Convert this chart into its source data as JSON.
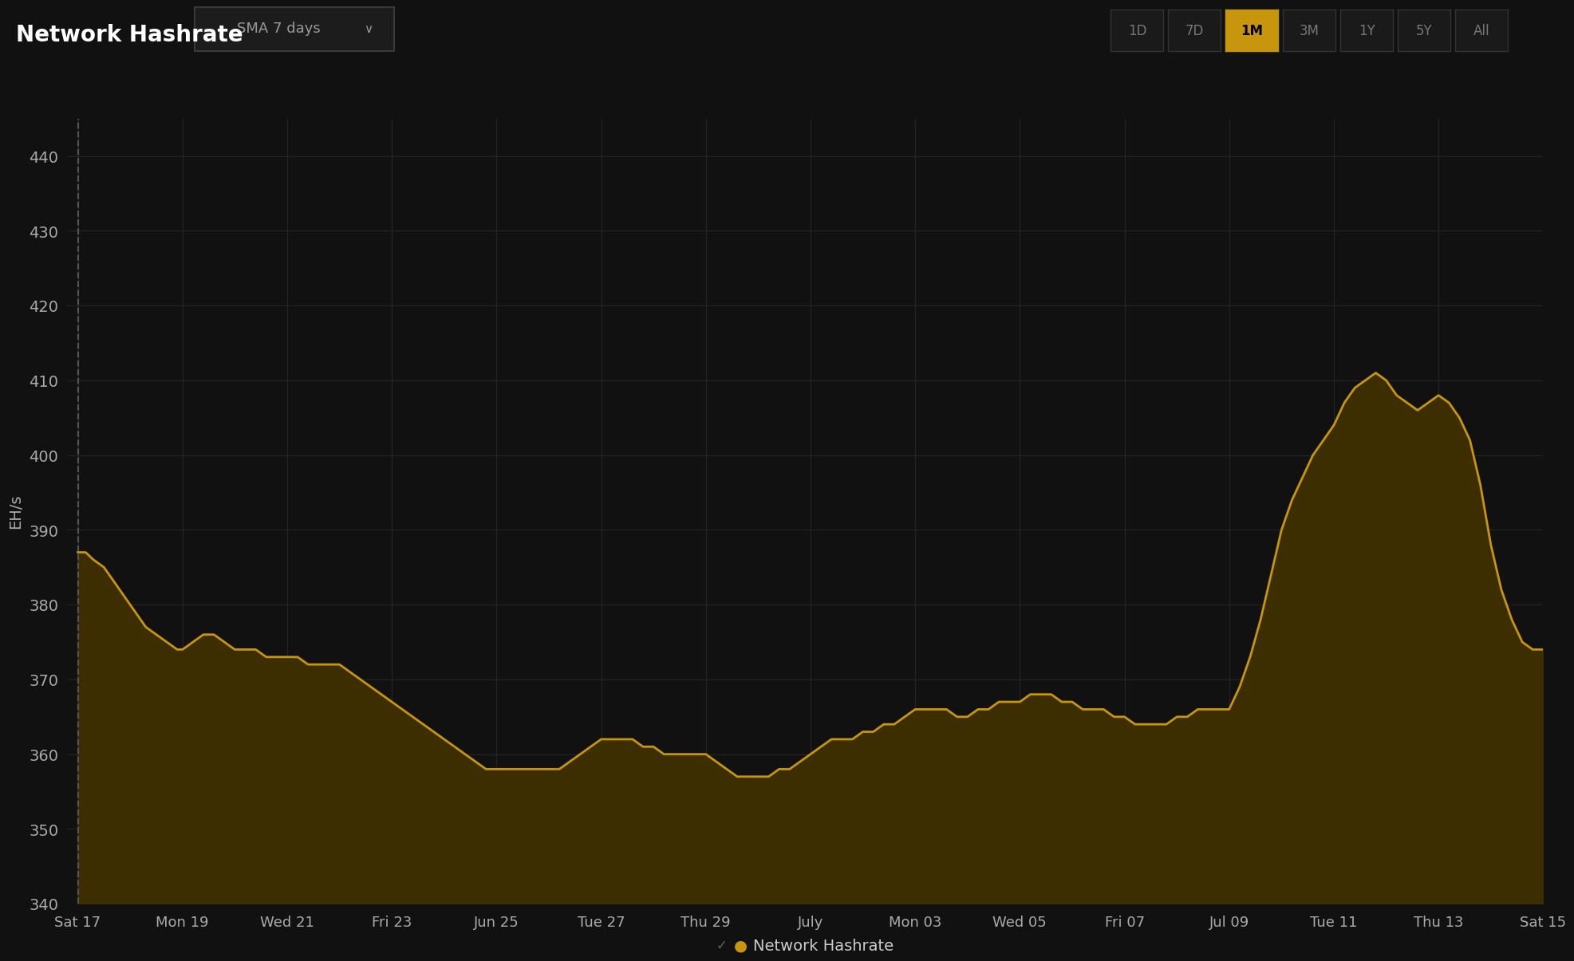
{
  "title": "Network Hashrate",
  "ylabel": "EH/s",
  "background_color": "#111111",
  "line_color": "#c8960c",
  "fill_color": "#3d2e00",
  "grid_color": "#252525",
  "text_color": "#cccccc",
  "ytick_color": "#aaaaaa",
  "ylim": [
    340,
    445
  ],
  "yticks": [
    340,
    350,
    360,
    370,
    380,
    390,
    400,
    410,
    420,
    430,
    440
  ],
  "x_labels": [
    "Sat 17",
    "Mon 19",
    "Wed 21",
    "Fri 23",
    "Jun 25",
    "Tue 27",
    "Thu 29",
    "July",
    "Mon 03",
    "Wed 05",
    "Fri 07",
    "Jul 09",
    "Tue 11",
    "Thu 13",
    "Sat 15"
  ],
  "x_positions": [
    0,
    2,
    4,
    6,
    8,
    10,
    12,
    14,
    16,
    18,
    20,
    22,
    24,
    26,
    28
  ],
  "legend_label": "Network Hashrate",
  "button_labels": [
    "1D",
    "7D",
    "1M",
    "3M",
    "1Y",
    "5Y",
    "All"
  ],
  "active_button": "1M",
  "active_button_color": "#c8960c",
  "active_button_text_color": "#000000",
  "inactive_button_color": "#1a1a1a",
  "inactive_button_text_color": "#777777",
  "dropdown_label": "SMA 7 days",
  "x_data": [
    0.0,
    0.15,
    0.3,
    0.5,
    0.7,
    0.9,
    1.1,
    1.3,
    1.5,
    1.7,
    1.9,
    2.0,
    2.2,
    2.4,
    2.6,
    2.8,
    3.0,
    3.2,
    3.4,
    3.6,
    3.8,
    4.0,
    4.2,
    4.4,
    4.6,
    4.8,
    5.0,
    5.2,
    5.4,
    5.6,
    5.8,
    6.0,
    6.2,
    6.4,
    6.6,
    6.8,
    7.0,
    7.2,
    7.4,
    7.6,
    7.8,
    8.0,
    8.2,
    8.4,
    8.6,
    8.8,
    9.0,
    9.2,
    9.4,
    9.6,
    9.8,
    10.0,
    10.2,
    10.4,
    10.6,
    10.8,
    11.0,
    11.2,
    11.4,
    11.6,
    11.8,
    12.0,
    12.2,
    12.4,
    12.6,
    12.8,
    13.0,
    13.2,
    13.4,
    13.6,
    13.8,
    14.0,
    14.2,
    14.4,
    14.6,
    14.8,
    15.0,
    15.2,
    15.4,
    15.6,
    15.8,
    16.0,
    16.2,
    16.4,
    16.6,
    16.8,
    17.0,
    17.2,
    17.4,
    17.6,
    17.8,
    18.0,
    18.2,
    18.4,
    18.6,
    18.8,
    19.0,
    19.2,
    19.4,
    19.6,
    19.8,
    20.0,
    20.2,
    20.4,
    20.6,
    20.8,
    21.0,
    21.2,
    21.4,
    21.6,
    21.8,
    22.0,
    22.2,
    22.4,
    22.6,
    22.8,
    23.0,
    23.2,
    23.4,
    23.6,
    23.8,
    24.0,
    24.2,
    24.4,
    24.6,
    24.8,
    25.0,
    25.2,
    25.4,
    25.6,
    25.8,
    26.0,
    26.2,
    26.4,
    26.6,
    26.8,
    27.0,
    27.2,
    27.4,
    27.6,
    27.8,
    28.0
  ],
  "y_data": [
    387,
    387,
    386,
    385,
    383,
    381,
    379,
    377,
    376,
    375,
    374,
    374,
    375,
    376,
    376,
    375,
    374,
    374,
    374,
    373,
    373,
    373,
    373,
    372,
    372,
    372,
    372,
    371,
    370,
    369,
    368,
    367,
    366,
    365,
    364,
    363,
    362,
    361,
    360,
    359,
    358,
    358,
    358,
    358,
    358,
    358,
    358,
    358,
    359,
    360,
    361,
    362,
    362,
    362,
    362,
    361,
    361,
    360,
    360,
    360,
    360,
    360,
    359,
    358,
    357,
    357,
    357,
    357,
    358,
    358,
    359,
    360,
    361,
    362,
    362,
    362,
    363,
    363,
    364,
    364,
    365,
    366,
    366,
    366,
    366,
    365,
    365,
    366,
    366,
    367,
    367,
    367,
    368,
    368,
    368,
    367,
    367,
    366,
    366,
    366,
    365,
    365,
    364,
    364,
    364,
    364,
    365,
    365,
    366,
    366,
    366,
    366,
    369,
    373,
    378,
    384,
    390,
    394,
    397,
    400,
    402,
    404,
    407,
    409,
    410,
    411,
    410,
    408,
    407,
    406,
    407,
    408,
    407,
    405,
    402,
    396,
    388,
    382,
    378,
    375,
    374,
    374
  ]
}
